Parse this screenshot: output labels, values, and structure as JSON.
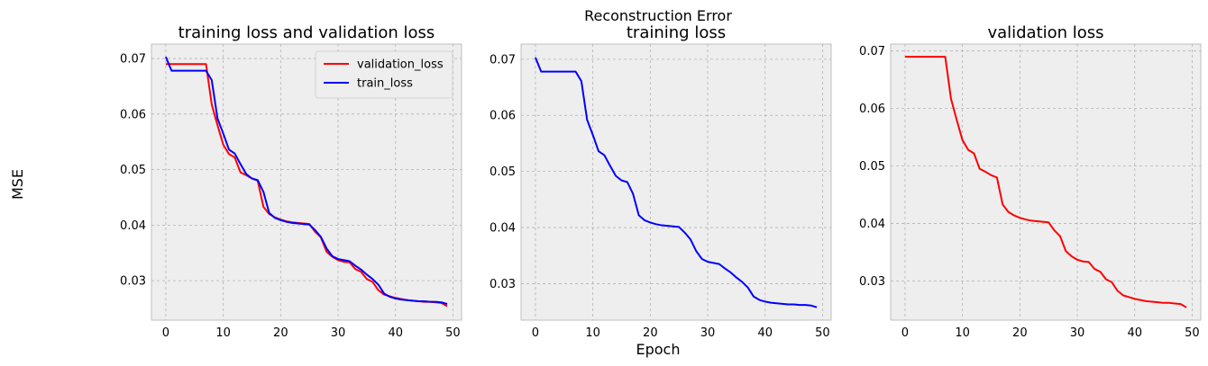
{
  "figure": {
    "suptitle": "Reconstruction Error",
    "supylabel": "MSE",
    "supxlabel": "Epoch"
  },
  "colors": {
    "validation": "#ff0000",
    "train": "#0000ff",
    "axes_bg": "#eeeeee",
    "grid": "#b2b2b2"
  },
  "chart_data": [
    {
      "type": "line",
      "title": "training loss and validation loss",
      "xlabel": "",
      "ylabel": "",
      "grid": true,
      "legend": "top-right",
      "xlim": [
        -2.5,
        51.5
      ],
      "ylim": [
        0.0229,
        0.0726
      ],
      "xticks": [
        0,
        10,
        20,
        30,
        40,
        50
      ],
      "yticks": [
        0.03,
        0.04,
        0.05,
        0.06,
        0.07
      ],
      "ytick_labels": [
        "0.03",
        "0.04",
        "0.05",
        "0.06",
        "0.07"
      ],
      "series": [
        {
          "name": "validation_loss",
          "color": "#ff0000",
          "x": [
            0,
            1,
            2,
            3,
            4,
            5,
            6,
            7,
            8,
            9,
            10,
            11,
            12,
            13,
            14,
            15,
            16,
            17,
            18,
            19,
            20,
            21,
            22,
            23,
            24,
            25,
            26,
            27,
            28,
            29,
            30,
            31,
            32,
            33,
            34,
            35,
            36,
            37,
            38,
            39,
            40,
            41,
            42,
            43,
            44,
            45,
            46,
            47,
            48,
            49
          ],
          "y": [
            0.069,
            0.069,
            0.069,
            0.069,
            0.069,
            0.069,
            0.069,
            0.069,
            0.0617,
            0.058,
            0.0545,
            0.0528,
            0.0522,
            0.0495,
            0.049,
            0.0484,
            0.048,
            0.0433,
            0.042,
            0.0414,
            0.041,
            0.0407,
            0.0405,
            0.0404,
            0.0403,
            0.0402,
            0.0388,
            0.0378,
            0.0352,
            0.0343,
            0.0337,
            0.0334,
            0.0333,
            0.0321,
            0.0316,
            0.0303,
            0.0298,
            0.0283,
            0.0275,
            0.0272,
            0.0269,
            0.0267,
            0.0265,
            0.0264,
            0.0263,
            0.0262,
            0.0262,
            0.0261,
            0.026,
            0.0254
          ]
        },
        {
          "name": "train_loss",
          "color": "#0000ff",
          "x": [
            0,
            1,
            2,
            3,
            4,
            5,
            6,
            7,
            8,
            9,
            10,
            11,
            12,
            13,
            14,
            15,
            16,
            17,
            18,
            19,
            20,
            21,
            22,
            23,
            24,
            25,
            26,
            27,
            28,
            29,
            30,
            31,
            32,
            33,
            34,
            35,
            36,
            37,
            38,
            39,
            40,
            41,
            42,
            43,
            44,
            45,
            46,
            47,
            48,
            49
          ],
          "y": [
            0.0703,
            0.0678,
            0.0678,
            0.0678,
            0.0678,
            0.0678,
            0.0678,
            0.0678,
            0.0661,
            0.0592,
            0.0565,
            0.0536,
            0.0529,
            0.051,
            0.0492,
            0.0484,
            0.0481,
            0.046,
            0.0422,
            0.0413,
            0.0409,
            0.0406,
            0.0404,
            0.0403,
            0.0402,
            0.0401,
            0.0391,
            0.0379,
            0.0358,
            0.0344,
            0.0339,
            0.0337,
            0.0335,
            0.0327,
            0.032,
            0.0311,
            0.0303,
            0.0293,
            0.0277,
            0.0271,
            0.0268,
            0.0266,
            0.0265,
            0.0264,
            0.0263,
            0.0263,
            0.0262,
            0.0262,
            0.0261,
            0.0258
          ]
        }
      ]
    },
    {
      "type": "line",
      "title": "training loss",
      "xlabel": "",
      "ylabel": "",
      "grid": true,
      "legend": "none",
      "xlim": [
        -2.5,
        51.5
      ],
      "ylim": [
        0.0235,
        0.0727
      ],
      "xticks": [
        0,
        10,
        20,
        30,
        40,
        50
      ],
      "yticks": [
        0.03,
        0.04,
        0.05,
        0.06,
        0.07
      ],
      "ytick_labels": [
        "0.03",
        "0.04",
        "0.05",
        "0.06",
        "0.07"
      ],
      "series": [
        {
          "name": "",
          "color": "#0000ff",
          "x": [
            0,
            1,
            2,
            3,
            4,
            5,
            6,
            7,
            8,
            9,
            10,
            11,
            12,
            13,
            14,
            15,
            16,
            17,
            18,
            19,
            20,
            21,
            22,
            23,
            24,
            25,
            26,
            27,
            28,
            29,
            30,
            31,
            32,
            33,
            34,
            35,
            36,
            37,
            38,
            39,
            40,
            41,
            42,
            43,
            44,
            45,
            46,
            47,
            48,
            49
          ],
          "y": [
            0.0703,
            0.0678,
            0.0678,
            0.0678,
            0.0678,
            0.0678,
            0.0678,
            0.0678,
            0.0661,
            0.0592,
            0.0565,
            0.0536,
            0.0529,
            0.051,
            0.0492,
            0.0484,
            0.0481,
            0.046,
            0.0422,
            0.0413,
            0.0409,
            0.0406,
            0.0404,
            0.0403,
            0.0402,
            0.0401,
            0.0391,
            0.0379,
            0.0358,
            0.0344,
            0.0339,
            0.0337,
            0.0335,
            0.0327,
            0.032,
            0.0311,
            0.0303,
            0.0293,
            0.0277,
            0.0271,
            0.0268,
            0.0266,
            0.0265,
            0.0264,
            0.0263,
            0.0263,
            0.0262,
            0.0262,
            0.0261,
            0.0258
          ]
        }
      ]
    },
    {
      "type": "line",
      "title": "validation loss",
      "xlabel": "",
      "ylabel": "",
      "grid": true,
      "legend": "none",
      "xlim": [
        -2.5,
        51.5
      ],
      "ylim": [
        0.0232,
        0.0712
      ],
      "xticks": [
        0,
        10,
        20,
        30,
        40,
        50
      ],
      "yticks": [
        0.03,
        0.04,
        0.05,
        0.06,
        0.07
      ],
      "ytick_labels": [
        "0.03",
        "0.04",
        "0.05",
        "0.06",
        "0.07"
      ],
      "series": [
        {
          "name": "",
          "color": "#ff0000",
          "x": [
            0,
            1,
            2,
            3,
            4,
            5,
            6,
            7,
            8,
            9,
            10,
            11,
            12,
            13,
            14,
            15,
            16,
            17,
            18,
            19,
            20,
            21,
            22,
            23,
            24,
            25,
            26,
            27,
            28,
            29,
            30,
            31,
            32,
            33,
            34,
            35,
            36,
            37,
            38,
            39,
            40,
            41,
            42,
            43,
            44,
            45,
            46,
            47,
            48,
            49
          ],
          "y": [
            0.069,
            0.069,
            0.069,
            0.069,
            0.069,
            0.069,
            0.069,
            0.069,
            0.0617,
            0.058,
            0.0545,
            0.0528,
            0.0522,
            0.0495,
            0.049,
            0.0484,
            0.048,
            0.0433,
            0.042,
            0.0414,
            0.041,
            0.0407,
            0.0405,
            0.0404,
            0.0403,
            0.0402,
            0.0388,
            0.0378,
            0.0352,
            0.0343,
            0.0337,
            0.0334,
            0.0333,
            0.0321,
            0.0316,
            0.0303,
            0.0298,
            0.0283,
            0.0275,
            0.0272,
            0.0269,
            0.0267,
            0.0265,
            0.0264,
            0.0263,
            0.0262,
            0.0262,
            0.0261,
            0.026,
            0.0254
          ]
        }
      ]
    }
  ]
}
